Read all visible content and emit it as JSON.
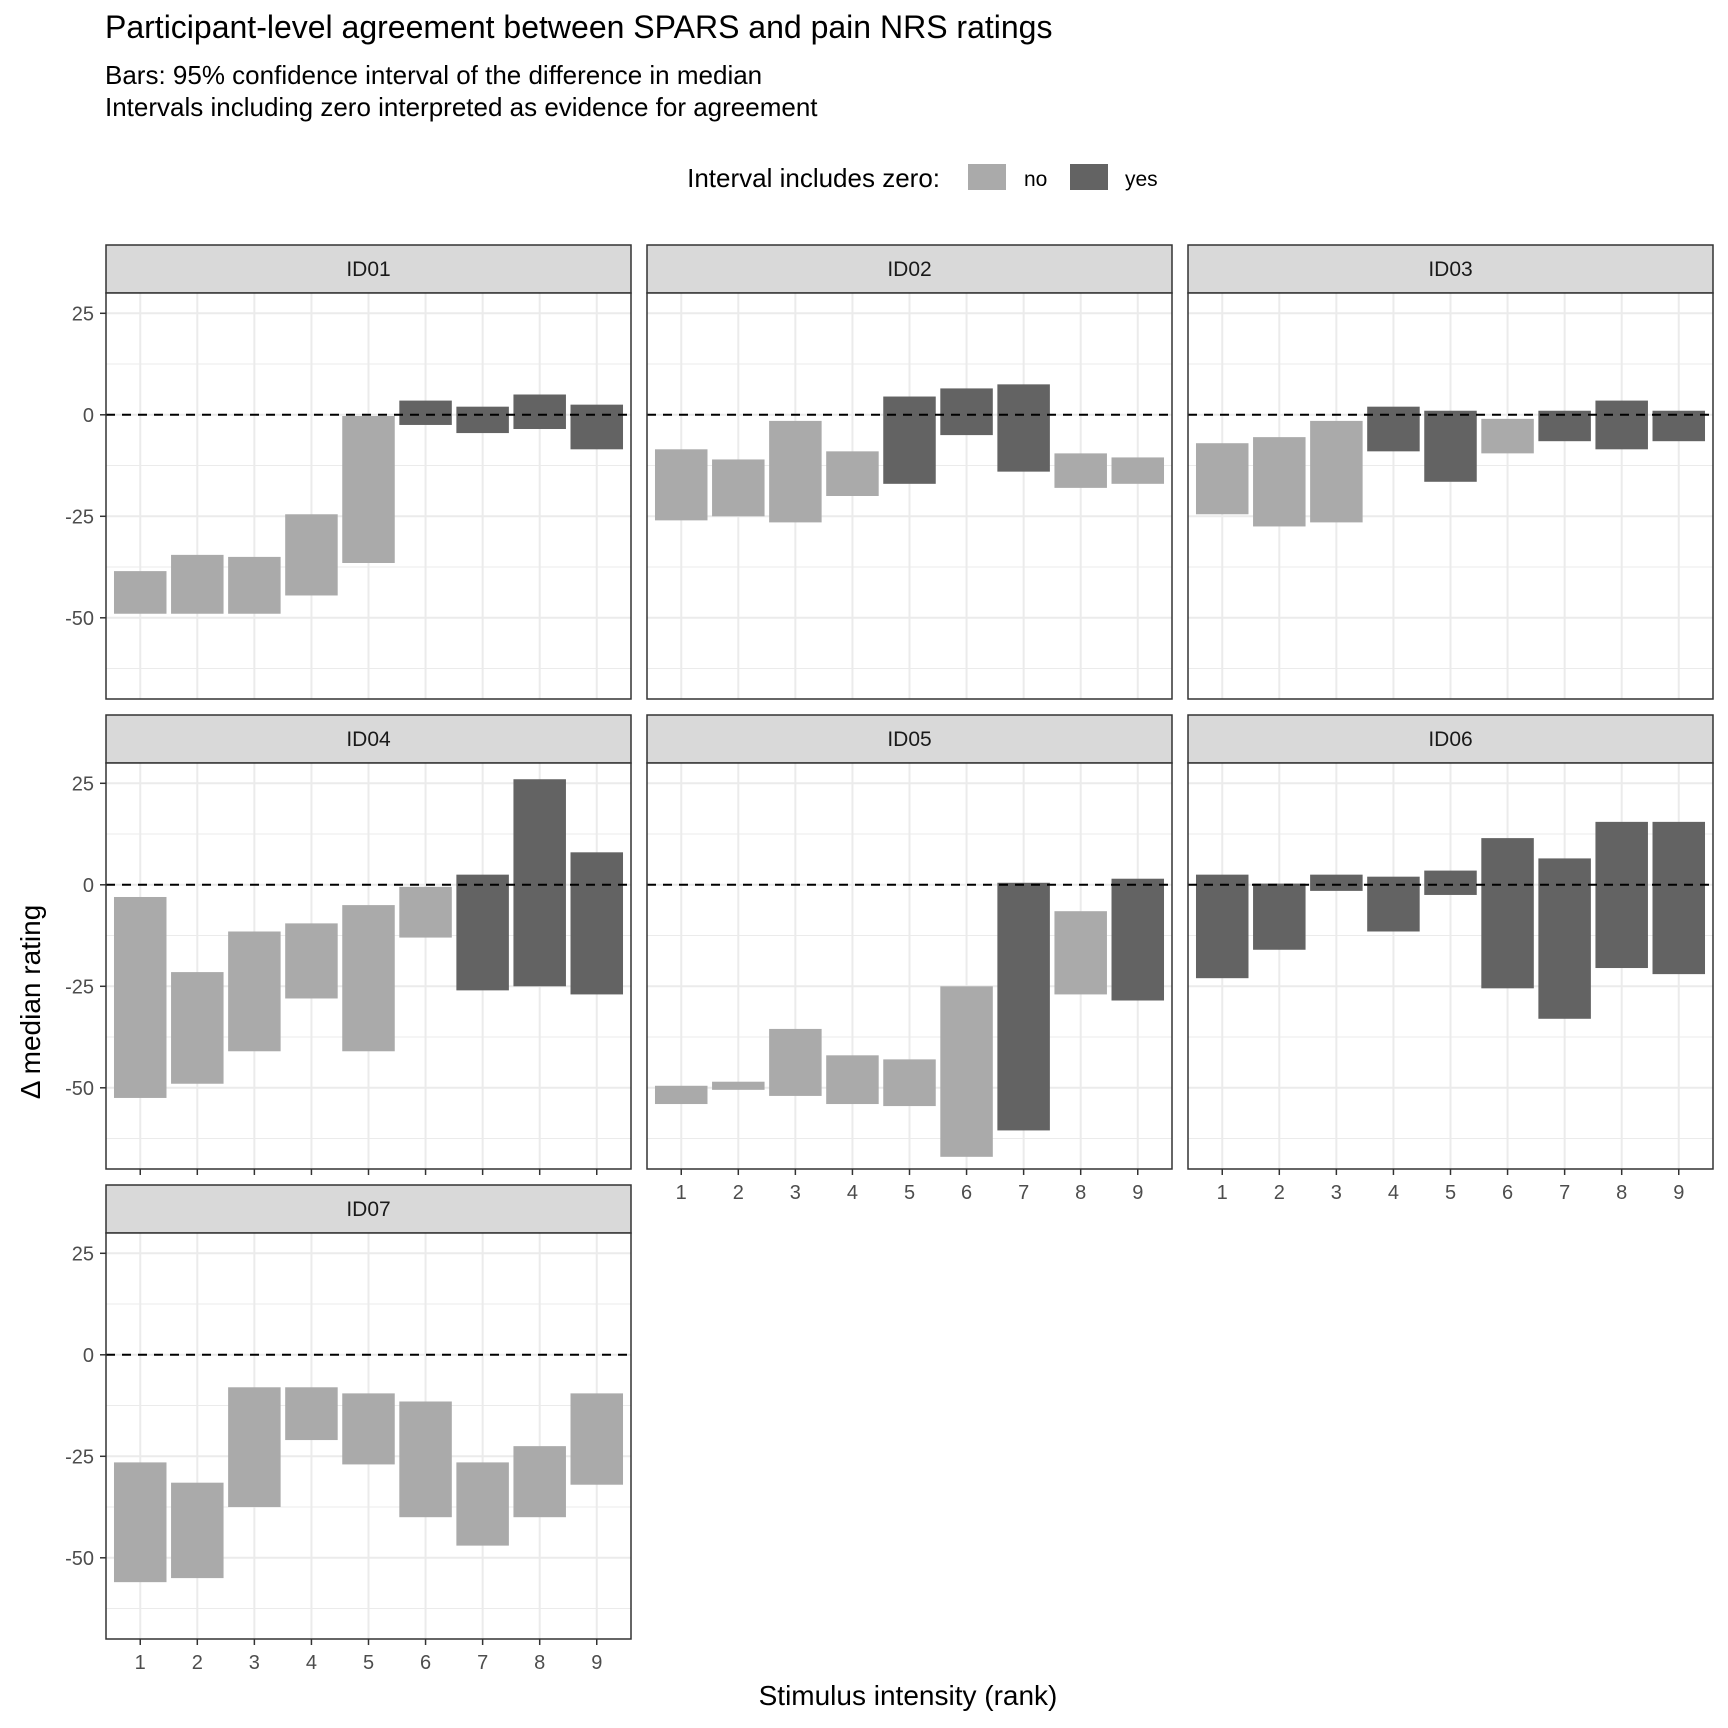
{
  "title": "Participant-level agreement between SPARS and pain NRS ratings",
  "subtitle_line1": "Bars: 95% confidence interval of the difference in median",
  "subtitle_line2": "Intervals including zero interpreted as evidence for agreement",
  "legend": {
    "title": "Interval includes zero:",
    "items": [
      {
        "label": "no",
        "color": "#aaaaaa"
      },
      {
        "label": "yes",
        "color": "#636363"
      }
    ]
  },
  "chart_data": {
    "type": "bar",
    "subtype": "floating-range (CI) bars, faceted",
    "xlabel": "Stimulus intensity (rank)",
    "ylabel": "Δ median rating",
    "x_categories": [
      "1",
      "2",
      "3",
      "4",
      "5",
      "6",
      "7",
      "8",
      "9"
    ],
    "y_ticks": [
      "25",
      "0",
      "-25",
      "-50"
    ],
    "y_tick_values": [
      25,
      0,
      -25,
      -50
    ],
    "ylim": [
      -70,
      30
    ],
    "reference_line": 0,
    "grid": true,
    "legend_position": "top",
    "colors": {
      "no": "#aaaaaa",
      "yes": "#636363",
      "grid": "#ebebeb",
      "strip": "#d9d9d9"
    },
    "panels": [
      {
        "name": "ID01",
        "bars": [
          {
            "x": 1,
            "lower": -49,
            "upper": -38.5,
            "includes_zero": "no"
          },
          {
            "x": 2,
            "lower": -49,
            "upper": -34.5,
            "includes_zero": "no"
          },
          {
            "x": 3,
            "lower": -49,
            "upper": -35,
            "includes_zero": "no"
          },
          {
            "x": 4,
            "lower": -44.5,
            "upper": -24.5,
            "includes_zero": "no"
          },
          {
            "x": 5,
            "lower": -36.5,
            "upper": -0.3,
            "includes_zero": "no"
          },
          {
            "x": 6,
            "lower": -2.5,
            "upper": 3.5,
            "includes_zero": "yes"
          },
          {
            "x": 7,
            "lower": -4.5,
            "upper": 2,
            "includes_zero": "yes"
          },
          {
            "x": 8,
            "lower": -3.5,
            "upper": 5,
            "includes_zero": "yes"
          },
          {
            "x": 9,
            "lower": -8.5,
            "upper": 2.5,
            "includes_zero": "yes"
          }
        ]
      },
      {
        "name": "ID02",
        "bars": [
          {
            "x": 1,
            "lower": -26,
            "upper": -8.5,
            "includes_zero": "no"
          },
          {
            "x": 2,
            "lower": -25,
            "upper": -11,
            "includes_zero": "no"
          },
          {
            "x": 3,
            "lower": -26.5,
            "upper": -1.5,
            "includes_zero": "no"
          },
          {
            "x": 4,
            "lower": -20,
            "upper": -9,
            "includes_zero": "no"
          },
          {
            "x": 5,
            "lower": -17,
            "upper": 4.5,
            "includes_zero": "yes"
          },
          {
            "x": 6,
            "lower": -5,
            "upper": 6.5,
            "includes_zero": "yes"
          },
          {
            "x": 7,
            "lower": -14,
            "upper": 7.5,
            "includes_zero": "yes"
          },
          {
            "x": 8,
            "lower": -18,
            "upper": -9.5,
            "includes_zero": "no"
          },
          {
            "x": 9,
            "lower": -17,
            "upper": -10.5,
            "includes_zero": "no"
          }
        ]
      },
      {
        "name": "ID03",
        "bars": [
          {
            "x": 1,
            "lower": -24.5,
            "upper": -7,
            "includes_zero": "no"
          },
          {
            "x": 2,
            "lower": -27.5,
            "upper": -5.5,
            "includes_zero": "no"
          },
          {
            "x": 3,
            "lower": -26.5,
            "upper": -1.5,
            "includes_zero": "no"
          },
          {
            "x": 4,
            "lower": -9,
            "upper": 2,
            "includes_zero": "yes"
          },
          {
            "x": 5,
            "lower": -16.5,
            "upper": 1,
            "includes_zero": "yes"
          },
          {
            "x": 6,
            "lower": -9.5,
            "upper": -1,
            "includes_zero": "no"
          },
          {
            "x": 7,
            "lower": -6.5,
            "upper": 1,
            "includes_zero": "yes"
          },
          {
            "x": 8,
            "lower": -8.5,
            "upper": 3.5,
            "includes_zero": "yes"
          },
          {
            "x": 9,
            "lower": -6.5,
            "upper": 1,
            "includes_zero": "yes"
          }
        ]
      },
      {
        "name": "ID04",
        "bars": [
          {
            "x": 1,
            "lower": -52.5,
            "upper": -3,
            "includes_zero": "no"
          },
          {
            "x": 2,
            "lower": -49,
            "upper": -21.5,
            "includes_zero": "no"
          },
          {
            "x": 3,
            "lower": -41,
            "upper": -11.5,
            "includes_zero": "no"
          },
          {
            "x": 4,
            "lower": -28,
            "upper": -9.5,
            "includes_zero": "no"
          },
          {
            "x": 5,
            "lower": -41,
            "upper": -5,
            "includes_zero": "no"
          },
          {
            "x": 6,
            "lower": -13,
            "upper": -0.5,
            "includes_zero": "no"
          },
          {
            "x": 7,
            "lower": -26,
            "upper": 2.5,
            "includes_zero": "yes"
          },
          {
            "x": 8,
            "lower": -25,
            "upper": 26,
            "includes_zero": "yes"
          },
          {
            "x": 9,
            "lower": -27,
            "upper": 8,
            "includes_zero": "yes"
          }
        ]
      },
      {
        "name": "ID05",
        "bars": [
          {
            "x": 1,
            "lower": -54,
            "upper": -49.5,
            "includes_zero": "no"
          },
          {
            "x": 2,
            "lower": -50.5,
            "upper": -48.5,
            "includes_zero": "no"
          },
          {
            "x": 3,
            "lower": -52,
            "upper": -35.5,
            "includes_zero": "no"
          },
          {
            "x": 4,
            "lower": -54,
            "upper": -42,
            "includes_zero": "no"
          },
          {
            "x": 5,
            "lower": -54.5,
            "upper": -43,
            "includes_zero": "no"
          },
          {
            "x": 6,
            "lower": -67,
            "upper": -25,
            "includes_zero": "no"
          },
          {
            "x": 7,
            "lower": -60.5,
            "upper": 0.5,
            "includes_zero": "yes"
          },
          {
            "x": 8,
            "lower": -27,
            "upper": -6.5,
            "includes_zero": "no"
          },
          {
            "x": 9,
            "lower": -28.5,
            "upper": 1.5,
            "includes_zero": "yes"
          }
        ]
      },
      {
        "name": "ID06",
        "bars": [
          {
            "x": 1,
            "lower": -23,
            "upper": 2.5,
            "includes_zero": "yes"
          },
          {
            "x": 2,
            "lower": -16,
            "upper": 0.3,
            "includes_zero": "yes"
          },
          {
            "x": 3,
            "lower": -1.5,
            "upper": 2.5,
            "includes_zero": "yes"
          },
          {
            "x": 4,
            "lower": -11.5,
            "upper": 2,
            "includes_zero": "yes"
          },
          {
            "x": 5,
            "lower": -2.5,
            "upper": 3.5,
            "includes_zero": "yes"
          },
          {
            "x": 6,
            "lower": -25.5,
            "upper": 11.5,
            "includes_zero": "yes"
          },
          {
            "x": 7,
            "lower": -33,
            "upper": 6.5,
            "includes_zero": "yes"
          },
          {
            "x": 8,
            "lower": -20.5,
            "upper": 15.5,
            "includes_zero": "yes"
          },
          {
            "x": 9,
            "lower": -22,
            "upper": 15.5,
            "includes_zero": "yes"
          }
        ]
      },
      {
        "name": "ID07",
        "bars": [
          {
            "x": 1,
            "lower": -56,
            "upper": -26.5,
            "includes_zero": "no"
          },
          {
            "x": 2,
            "lower": -55,
            "upper": -31.5,
            "includes_zero": "no"
          },
          {
            "x": 3,
            "lower": -37.5,
            "upper": -8,
            "includes_zero": "no"
          },
          {
            "x": 4,
            "lower": -21,
            "upper": -8,
            "includes_zero": "no"
          },
          {
            "x": 5,
            "lower": -27,
            "upper": -9.5,
            "includes_zero": "no"
          },
          {
            "x": 6,
            "lower": -40,
            "upper": -11.5,
            "includes_zero": "no"
          },
          {
            "x": 7,
            "lower": -47,
            "upper": -26.5,
            "includes_zero": "no"
          },
          {
            "x": 8,
            "lower": -40,
            "upper": -22.5,
            "includes_zero": "no"
          },
          {
            "x": 9,
            "lower": -32,
            "upper": -9.5,
            "includes_zero": "no"
          }
        ]
      }
    ]
  }
}
